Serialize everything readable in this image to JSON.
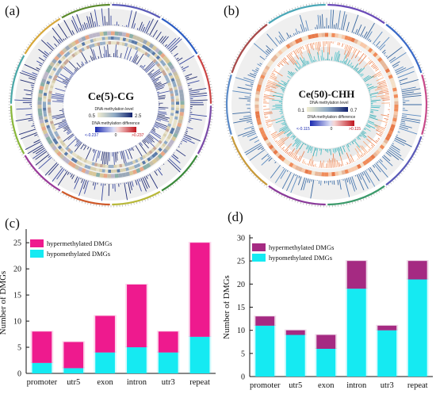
{
  "panels": {
    "a": {
      "label": "(a)",
      "title": "Ce(5)-CG",
      "level_title": "DNA methylation level",
      "level_min": "0.5",
      "level_max": "2.5",
      "diff_title": "DNA methylation difference",
      "diff_min": "<-0.237",
      "diff_zero": "0",
      "diff_max": ">0.237",
      "colors": {
        "outer_bars": "#1f2a6e",
        "level_low": "#e9e5c4",
        "level_high": "#1a2a7a",
        "diff_neg": "#1a2a9a",
        "diff_pos": "#c0161f"
      }
    },
    "b": {
      "label": "(b)",
      "title": "Ce(50)-CHH",
      "level_title": "DNA methylation level",
      "level_min": "0.1",
      "level_max": "0.7",
      "diff_title": "DNA methylation difference",
      "diff_min": "<-0.115",
      "diff_zero": "0",
      "diff_max": ">0.115",
      "colors": {
        "outer_bars": "#4a79b0",
        "inner_bars": "#3cb8c0",
        "ring_orange": "#f08c5a"
      }
    },
    "c": {
      "label": "(c)"
    },
    "d": {
      "label": "(d)"
    }
  },
  "chart_data": [
    {
      "type": "bar",
      "stacked": true,
      "categories": [
        "promoter",
        "utr5",
        "exon",
        "intron",
        "utr3",
        "repeat"
      ],
      "series": [
        {
          "name": "hypomethylated DMGs",
          "values": [
            2,
            1,
            4,
            5,
            4,
            7
          ],
          "color": "#15eaf2"
        },
        {
          "name": "hypermethylated DMGs",
          "values": [
            6,
            5,
            7,
            12,
            4,
            18
          ],
          "color": "#ee1a8e"
        }
      ],
      "ylabel": "Number of DMGs",
      "xlabel": "",
      "ylim": [
        0,
        27
      ],
      "yticks": [
        0,
        5,
        10,
        15,
        20,
        25
      ],
      "legend_position": "top-left",
      "grid": false
    },
    {
      "type": "bar",
      "stacked": true,
      "categories": [
        "promoter",
        "utr5",
        "exon",
        "intron",
        "utr3",
        "repeat"
      ],
      "series": [
        {
          "name": "hypomethylated DMGs",
          "values": [
            11,
            9,
            6,
            19,
            10,
            21
          ],
          "color": "#15eaf2"
        },
        {
          "name": "hypermethylated DMGs",
          "values": [
            2,
            1,
            3,
            6,
            1,
            4
          ],
          "color": "#a52a82"
        }
      ],
      "ylabel": "Number of DMGs",
      "xlabel": "",
      "ylim": [
        0,
        30
      ],
      "yticks": [
        0,
        5,
        10,
        15,
        20,
        25,
        30
      ],
      "legend_position": "top-left",
      "grid": false
    }
  ]
}
